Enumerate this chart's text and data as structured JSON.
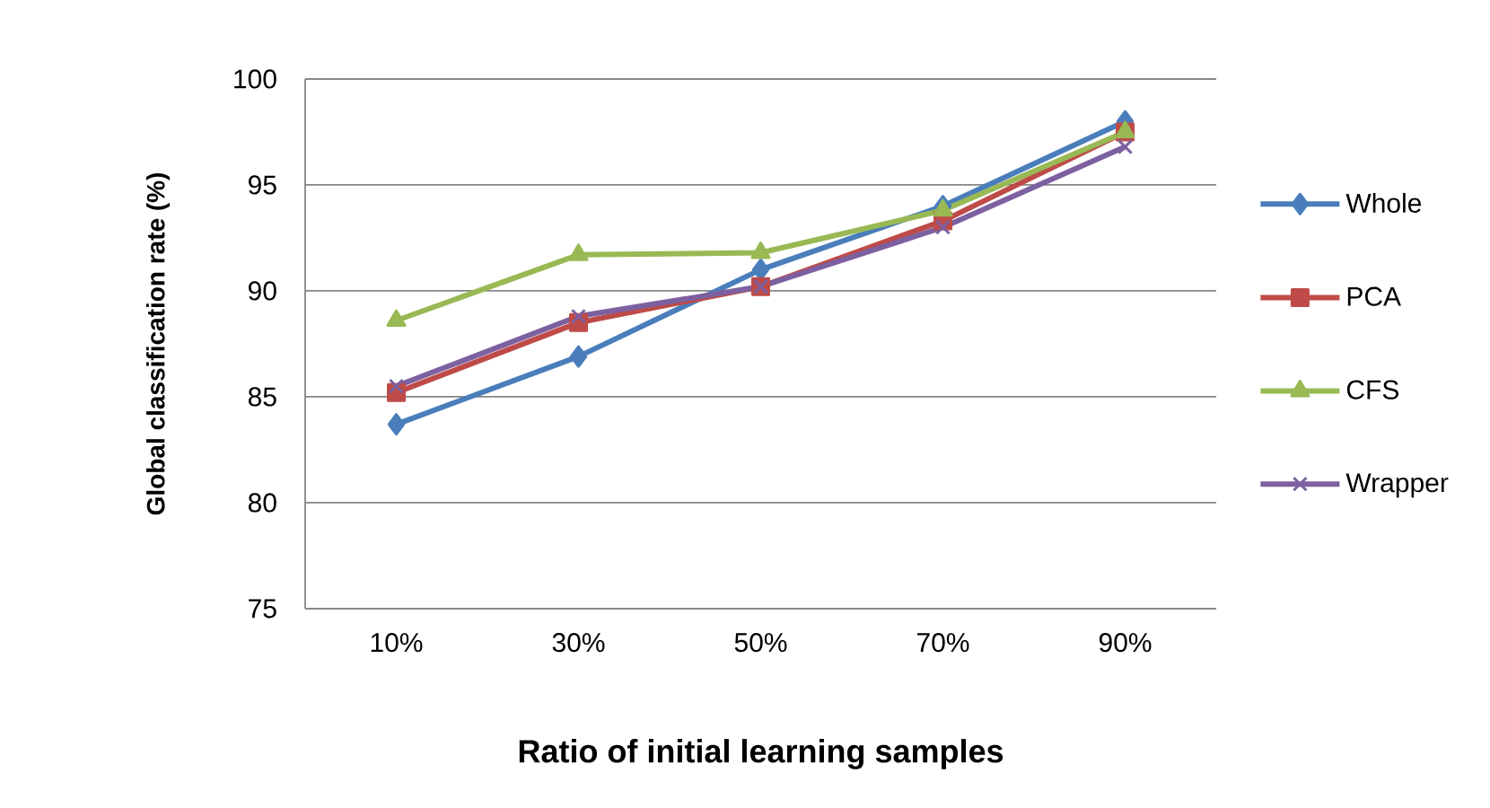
{
  "chart_data": {
    "type": "line",
    "xlabel": "Ratio of initial learning samples",
    "ylabel": "Global classification rate (%)",
    "categories": [
      "10%",
      "30%",
      "50%",
      "70%",
      "90%"
    ],
    "series": [
      {
        "name": "Whole",
        "color": "#4a7ebb",
        "marker": "diamond",
        "values": [
          83.7,
          86.9,
          91.0,
          94.0,
          98.0
        ]
      },
      {
        "name": "PCA",
        "color": "#be4b48",
        "marker": "square",
        "values": [
          85.2,
          88.5,
          90.2,
          93.3,
          97.5
        ]
      },
      {
        "name": "CFS",
        "color": "#98b954",
        "marker": "triangle",
        "values": [
          88.6,
          91.7,
          91.8,
          93.8,
          97.5
        ]
      },
      {
        "name": "Wrapper",
        "color": "#7d60a0",
        "marker": "cross",
        "values": [
          85.5,
          88.8,
          90.2,
          93.0,
          96.8
        ]
      }
    ],
    "ylim": [
      75,
      100
    ],
    "yticks": [
      75,
      80,
      85,
      90,
      95,
      100
    ],
    "grid": "y",
    "legend": "right",
    "line_style": "solid"
  }
}
